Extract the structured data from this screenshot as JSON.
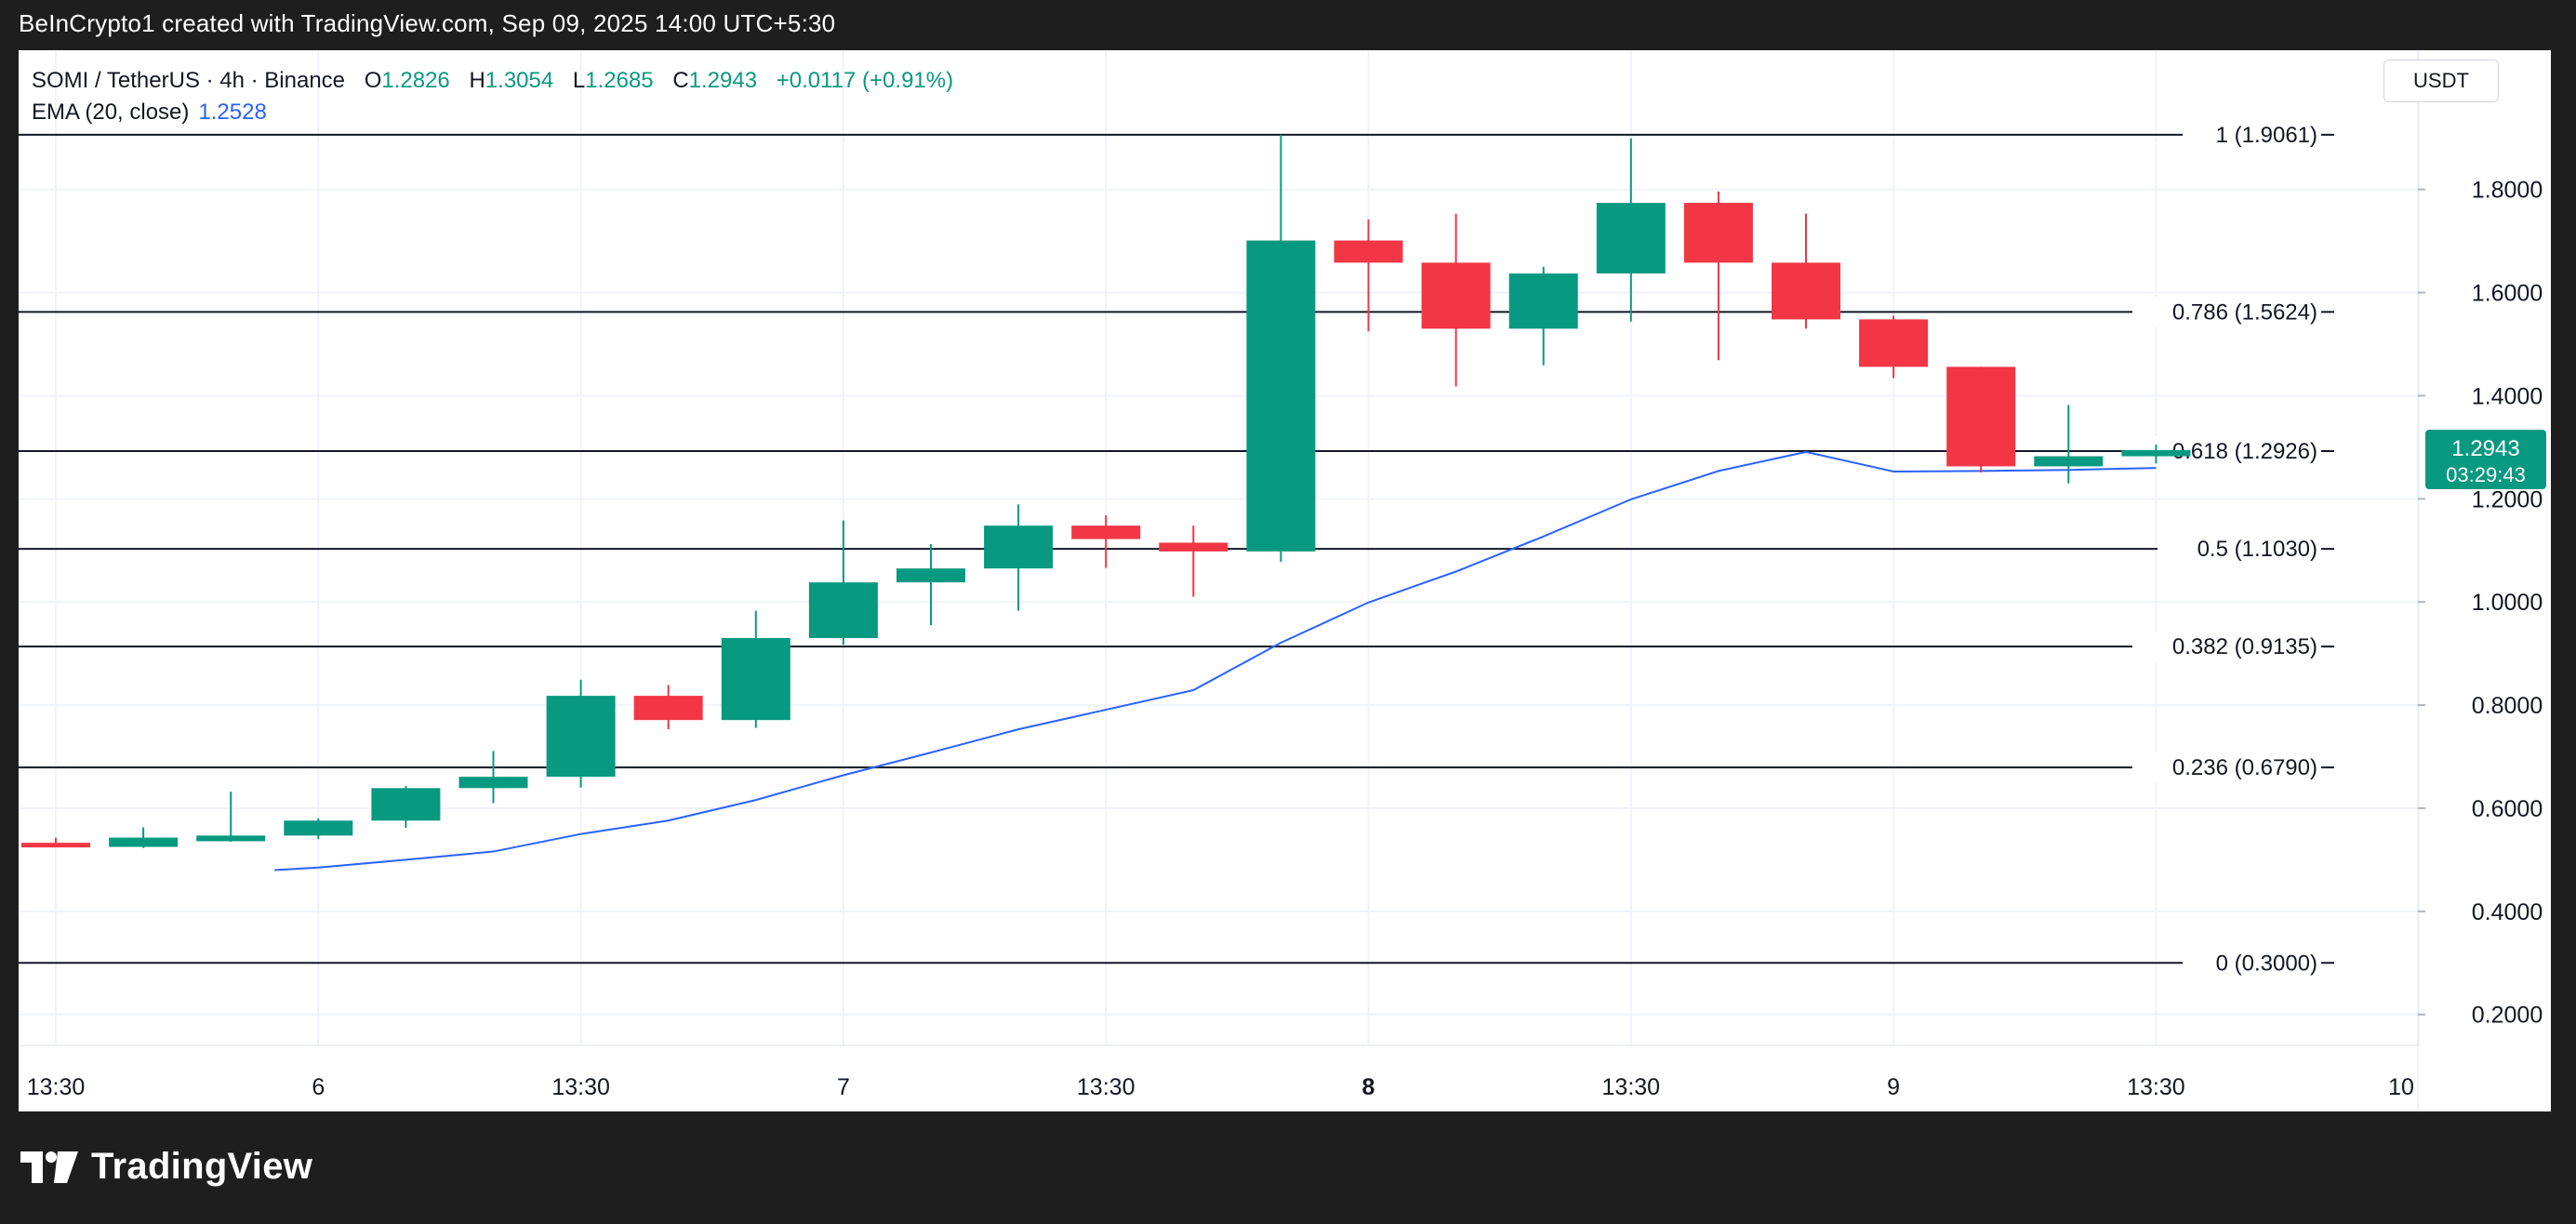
{
  "header": {
    "attribution": "BeInCrypto1 created with TradingView.com, Sep 09, 2025 14:00 UTC+5:30"
  },
  "legend": {
    "symbol": "SOMI / TetherUS · 4h · Binance",
    "open_label": "O",
    "open_value": "1.2826",
    "high_label": "H",
    "high_value": "1.3054",
    "low_label": "L",
    "low_value": "1.2685",
    "close_label": "C",
    "close_value": "1.2943",
    "change": "+0.0117 (+0.91%)",
    "ema_label": "EMA (20, close)",
    "ema_value": "1.2528"
  },
  "currency_button": "USDT",
  "price_badge": {
    "price": "1.2943",
    "countdown": "03:29:43"
  },
  "footer": {
    "brand": "TradingView"
  },
  "colors": {
    "up": "#089981",
    "down": "#f23645",
    "ema": "#2962ff",
    "fib_line": "#131722",
    "grid": "#f0f3fa",
    "badge": "#089981"
  },
  "icons": {
    "footer_logo": "tradingview-logo-icon"
  },
  "chart_data": {
    "type": "candlestick",
    "title": "SOMI / TetherUS · 4h · Binance",
    "ylim": [
      0.14,
      2.07
    ],
    "grid": true,
    "y_ticks": [
      "1.8000",
      "1.6000",
      "1.4000",
      "1.2000",
      "1.0000",
      "0.8000",
      "0.6000",
      "0.4000",
      "0.2000"
    ],
    "y_tick_values": [
      1.8,
      1.6,
      1.4,
      1.2,
      1.0,
      0.8,
      0.6,
      0.4,
      0.2
    ],
    "x_ticks": [
      "13:30",
      "6",
      "13:30",
      "7",
      "13:30",
      "8",
      "13:30",
      "9",
      "13:30",
      "10"
    ],
    "x_tick_index": [
      0,
      3,
      6,
      9,
      12,
      15,
      18,
      21,
      24,
      27
    ],
    "x_tick_bold": [
      false,
      false,
      false,
      false,
      false,
      true,
      false,
      false,
      false,
      false
    ],
    "candles": [
      {
        "o": 0.533,
        "h": 0.543,
        "l": 0.525,
        "c": 0.525
      },
      {
        "o": 0.525,
        "h": 0.563,
        "l": 0.523,
        "c": 0.543
      },
      {
        "o": 0.536,
        "h": 0.632,
        "l": 0.535,
        "c": 0.547
      },
      {
        "o": 0.547,
        "h": 0.58,
        "l": 0.54,
        "c": 0.576
      },
      {
        "o": 0.576,
        "h": 0.643,
        "l": 0.562,
        "c": 0.639
      },
      {
        "o": 0.639,
        "h": 0.711,
        "l": 0.61,
        "c": 0.661
      },
      {
        "o": 0.661,
        "h": 0.849,
        "l": 0.64,
        "c": 0.818
      },
      {
        "o": 0.818,
        "h": 0.839,
        "l": 0.753,
        "c": 0.771
      },
      {
        "o": 0.771,
        "h": 0.983,
        "l": 0.756,
        "c": 0.93
      },
      {
        "o": 0.93,
        "h": 1.158,
        "l": 0.917,
        "c": 1.038
      },
      {
        "o": 1.038,
        "h": 1.112,
        "l": 0.955,
        "c": 1.065
      },
      {
        "o": 1.065,
        "h": 1.189,
        "l": 0.983,
        "c": 1.148
      },
      {
        "o": 1.148,
        "h": 1.168,
        "l": 1.066,
        "c": 1.122
      },
      {
        "o": 1.115,
        "h": 1.148,
        "l": 1.01,
        "c": 1.098
      },
      {
        "o": 1.098,
        "h": 1.9061,
        "l": 1.078,
        "c": 1.701
      },
      {
        "o": 1.701,
        "h": 1.742,
        "l": 1.525,
        "c": 1.658
      },
      {
        "o": 1.658,
        "h": 1.753,
        "l": 1.418,
        "c": 1.53
      },
      {
        "o": 1.53,
        "h": 1.65,
        "l": 1.459,
        "c": 1.637
      },
      {
        "o": 1.637,
        "h": 1.899,
        "l": 1.544,
        "c": 1.774
      },
      {
        "o": 1.774,
        "h": 1.796,
        "l": 1.469,
        "c": 1.658
      },
      {
        "o": 1.658,
        "h": 1.753,
        "l": 1.53,
        "c": 1.548
      },
      {
        "o": 1.548,
        "h": 1.555,
        "l": 1.434,
        "c": 1.456
      },
      {
        "o": 1.456,
        "h": 1.456,
        "l": 1.251,
        "c": 1.263
      },
      {
        "o": 1.263,
        "h": 1.382,
        "l": 1.23,
        "c": 1.2826
      },
      {
        "o": 1.2826,
        "h": 1.3054,
        "l": 1.2685,
        "c": 1.2943
      }
    ],
    "ema": {
      "name": "EMA (20, close)",
      "start_index": 2.5,
      "x": [
        2.5,
        3.0,
        4.0,
        5.0,
        6.0,
        7.0,
        8.0,
        9.0,
        10.0,
        11.0,
        12.0,
        13.0,
        14.0,
        15.0,
        16.0,
        17.0,
        18.0,
        19.0,
        20.0,
        21.0,
        22.0,
        23.0,
        24.0
      ],
      "values": [
        0.48,
        0.485,
        0.5,
        0.516,
        0.55,
        0.576,
        0.616,
        0.664,
        0.708,
        0.753,
        0.791,
        0.829,
        0.921,
        0.999,
        1.059,
        1.127,
        1.199,
        1.254,
        1.291,
        1.253,
        1.254,
        1.256,
        1.26
      ]
    },
    "fib_levels": [
      {
        "ratio": "1",
        "value": 1.9061,
        "label": "1 (1.9061)"
      },
      {
        "ratio": "0.786",
        "value": 1.5624,
        "label": "0.786 (1.5624)"
      },
      {
        "ratio": "0.618",
        "value": 1.2926,
        "label": "0.618 (1.2926)"
      },
      {
        "ratio": "0.5",
        "value": 1.103,
        "label": "0.5 (1.1030)"
      },
      {
        "ratio": "0.382",
        "value": 0.9135,
        "label": "0.382 (0.9135)"
      },
      {
        "ratio": "0.236",
        "value": 0.679,
        "label": "0.236 (0.6790)"
      },
      {
        "ratio": "0",
        "value": 0.3,
        "label": "0 (0.3000)"
      }
    ],
    "last_price": 1.2943
  }
}
